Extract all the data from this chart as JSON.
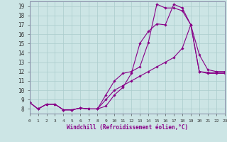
{
  "background_color": "#cce5e5",
  "grid_color": "#aacccc",
  "line_color": "#880088",
  "xlabel": "Windchill (Refroidissement éolien,°C)",
  "xlim": [
    0,
    23
  ],
  "ylim": [
    7.5,
    19.5
  ],
  "xticks": [
    0,
    1,
    2,
    3,
    4,
    5,
    6,
    7,
    8,
    9,
    10,
    11,
    12,
    13,
    14,
    15,
    16,
    17,
    18,
    19,
    20,
    21,
    22,
    23
  ],
  "yticks": [
    8,
    9,
    10,
    11,
    12,
    13,
    14,
    15,
    16,
    17,
    18,
    19
  ],
  "series1_y": [
    8.7,
    8.0,
    8.5,
    8.5,
    7.9,
    7.9,
    8.1,
    8.0,
    8.0,
    8.3,
    9.5,
    10.3,
    11.8,
    15.0,
    16.3,
    17.1,
    17.0,
    19.2,
    18.8,
    17.0,
    12.0,
    11.9,
    11.9,
    11.9
  ],
  "series2_y": [
    8.7,
    8.0,
    8.5,
    8.5,
    7.9,
    7.9,
    8.1,
    8.0,
    8.0,
    9.5,
    11.0,
    11.8,
    12.0,
    12.5,
    15.1,
    19.2,
    18.8,
    18.8,
    18.5,
    17.0,
    13.8,
    12.2,
    12.0,
    12.0
  ],
  "series3_y": [
    8.7,
    8.0,
    8.5,
    8.5,
    7.9,
    7.9,
    8.1,
    8.0,
    8.0,
    9.0,
    10.0,
    10.5,
    11.0,
    11.5,
    12.0,
    12.5,
    13.0,
    13.5,
    14.5,
    17.0,
    12.0,
    11.8,
    11.8,
    11.8
  ]
}
